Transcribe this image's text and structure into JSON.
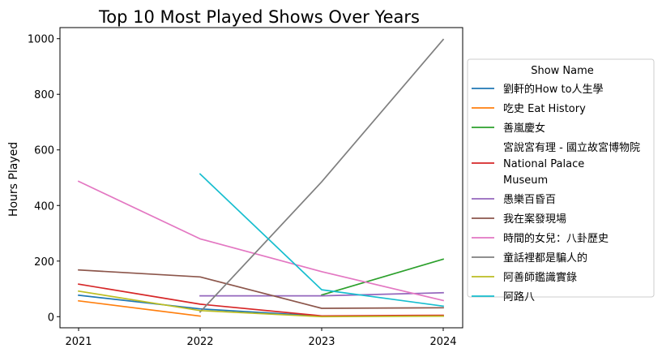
{
  "chart_data": {
    "type": "line",
    "title": "Top 10 Most Played Shows Over Years",
    "xlabel": "",
    "ylabel": "Hours Played",
    "x": [
      "2021",
      "2022",
      "2023",
      "2024"
    ],
    "ylim": [
      -40,
      1040
    ],
    "yticks": [
      0,
      200,
      400,
      600,
      800,
      1000
    ],
    "grid": false,
    "legend_title": "Show Name",
    "legend_position": "right, outside plot",
    "series": [
      {
        "name": "劉軒的How to人生學",
        "color": "#1f77b4",
        "values": [
          77,
          28,
          2,
          2
        ]
      },
      {
        "name": "吃史 Eat History",
        "color": "#ff7f0e",
        "values": [
          57,
          2,
          null,
          null
        ]
      },
      {
        "name": "善嵐慶女",
        "color": "#2ca02c",
        "values": [
          null,
          null,
          78,
          207
        ]
      },
      {
        "name": "宮說宮有理 - 國立故宮博物院 National Palace Museum",
        "legend_lines": [
          "宮說宮有理 - 國立故宮博物院",
          "National Palace",
          "Museum"
        ],
        "color": "#d62728",
        "values": [
          117,
          45,
          3,
          5
        ]
      },
      {
        "name": "愚樂百昏百",
        "color": "#9467bd",
        "values": [
          null,
          75,
          75,
          86
        ]
      },
      {
        "name": "我在案發現場",
        "color": "#8c564b",
        "values": [
          168,
          143,
          30,
          32
        ]
      },
      {
        "name": "時間的女兒：八卦歷史",
        "color": "#e377c2",
        "values": [
          487,
          280,
          162,
          58
        ]
      },
      {
        "name": "童話裡都是騙人的",
        "color": "#7f7f7f",
        "values": [
          null,
          17,
          485,
          997
        ]
      },
      {
        "name": "阿善師鑑識實錄",
        "color": "#bcbd22",
        "values": [
          92,
          22,
          0,
          2
        ]
      },
      {
        "name": "阿路八",
        "color": "#17becf",
        "values": [
          null,
          513,
          97,
          38
        ]
      }
    ]
  }
}
